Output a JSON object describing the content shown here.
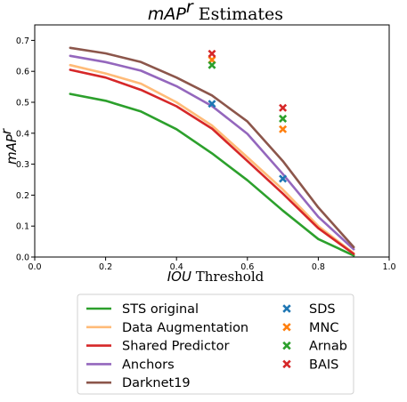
{
  "chart_data": {
    "type": "line",
    "title": {
      "italic": "mAP",
      "sup": "r",
      "rest": " Estimates"
    },
    "xlabel": {
      "italic": "IOU",
      "rest": " Threshold"
    },
    "ylabel": {
      "italic": "mAP",
      "sup": "r"
    },
    "xlim": [
      0.0,
      1.0
    ],
    "ylim": [
      0.0,
      0.75
    ],
    "xticks": [
      "0.0",
      "0.2",
      "0.4",
      "0.6",
      "0.8",
      "1.0"
    ],
    "yticks": [
      "0.0",
      "0.1",
      "0.2",
      "0.3",
      "0.4",
      "0.5",
      "0.6",
      "0.7"
    ],
    "grid": false,
    "legend_position": "below",
    "x": [
      0.1,
      0.2,
      0.3,
      0.4,
      0.5,
      0.6,
      0.7,
      0.8,
      0.9
    ],
    "series": [
      {
        "name": "STS original",
        "color": "#2ca02c",
        "values": [
          0.527,
          0.505,
          0.47,
          0.413,
          0.335,
          0.248,
          0.15,
          0.058,
          0.005
        ]
      },
      {
        "name": "Data Augmentation",
        "color": "#ffbb78",
        "values": [
          0.62,
          0.593,
          0.56,
          0.5,
          0.425,
          0.322,
          0.218,
          0.1,
          0.012
        ]
      },
      {
        "name": "Shared Predictor",
        "color": "#d62728",
        "values": [
          0.605,
          0.58,
          0.54,
          0.487,
          0.415,
          0.31,
          0.205,
          0.093,
          0.01
        ]
      },
      {
        "name": "Anchors",
        "color": "#9467bd",
        "values": [
          0.65,
          0.63,
          0.602,
          0.552,
          0.488,
          0.398,
          0.268,
          0.13,
          0.025
        ]
      },
      {
        "name": "Darknet19",
        "color": "#8c564b",
        "values": [
          0.676,
          0.658,
          0.63,
          0.58,
          0.522,
          0.438,
          0.31,
          0.16,
          0.032
        ]
      }
    ],
    "markers": [
      {
        "name": "SDS",
        "color": "#1f77b4",
        "points": [
          [
            0.5,
            0.495
          ],
          [
            0.7,
            0.253
          ]
        ]
      },
      {
        "name": "MNC",
        "color": "#ff7f0e",
        "points": [
          [
            0.5,
            0.637
          ],
          [
            0.7,
            0.413
          ]
        ]
      },
      {
        "name": "Arnab",
        "color": "#2ca02c",
        "points": [
          [
            0.5,
            0.62
          ],
          [
            0.7,
            0.447
          ]
        ]
      },
      {
        "name": "BAIS",
        "color": "#d62728",
        "points": [
          [
            0.5,
            0.657
          ],
          [
            0.7,
            0.482
          ]
        ]
      }
    ]
  }
}
